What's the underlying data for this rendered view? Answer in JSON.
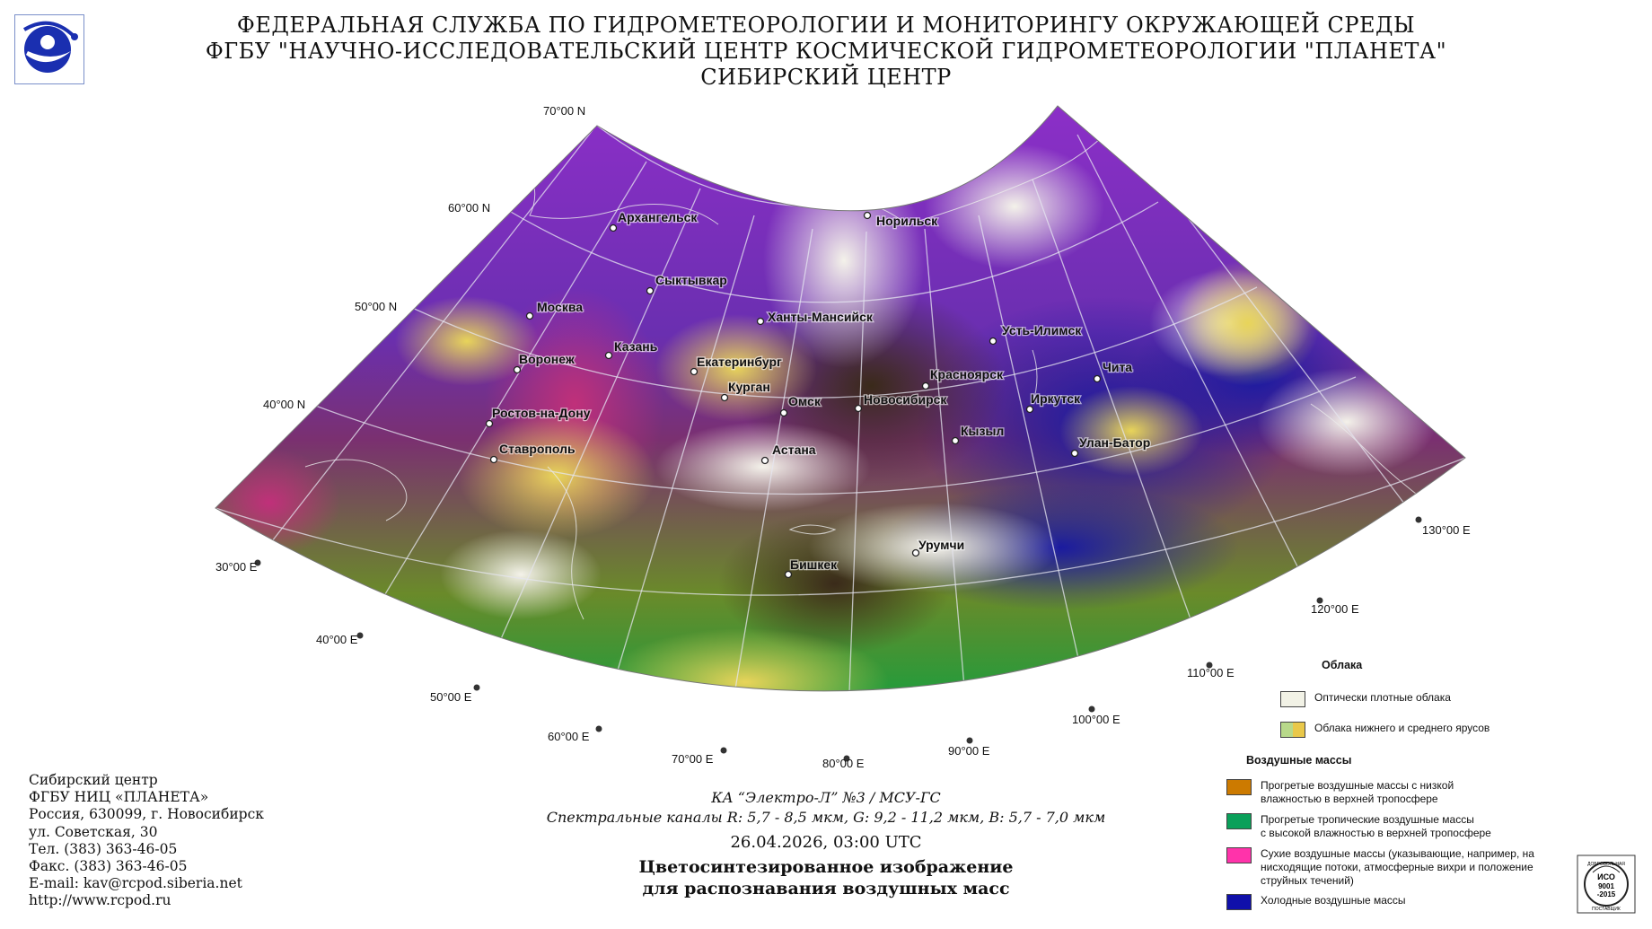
{
  "header": {
    "line1": "ФЕДЕРАЛЬНАЯ СЛУЖБА ПО ГИДРОМЕТЕОРОЛОГИИ И МОНИТОРИНГУ ОКРУЖАЮЩЕЙ СРЕДЫ",
    "line2": "ФГБУ \"НАУЧНО-ИССЛЕДОВАТЕЛЬСКИЙ ЦЕНТР КОСМИЧЕСКОЙ ГИДРОМЕТЕОРОЛОГИИ \"ПЛАНЕТА\"",
    "line3": "СИБИРСКИЙ ЦЕНТР"
  },
  "map": {
    "lat_labels": [
      "70°00 N",
      "60°00 N",
      "50°00 N",
      "40°00 N"
    ],
    "lon_labels": [
      "30°00 E",
      "40°00 E",
      "50°00 E",
      "60°00 E",
      "70°00 E",
      "80°00 E",
      "90°00 E",
      "100°00 E",
      "110°00 E",
      "120°00 E",
      "130°00 E"
    ],
    "cities": [
      "Архангельск",
      "Норильск",
      "Сыктывкар",
      "Москва",
      "Ханты-Мансийск",
      "Усть-Илимск",
      "Казань",
      "Воронеж",
      "Екатеринбург",
      "Красноярск",
      "Чита",
      "Курган",
      "Иркутск",
      "Омск",
      "Новосибирск",
      "Ростов-на-Дону",
      "Кызыл",
      "Улан-Батор",
      "Астана",
      "Ставрополь",
      "Урумчи",
      "Бишкек"
    ]
  },
  "legend": {
    "clouds_header": "Облака",
    "clouds": [
      {
        "label": "Оптически плотные облака",
        "color": "#f2f2e6"
      },
      {
        "label": "Облака нижнего и среднего ярусов",
        "colors": [
          "#b8d98a",
          "#e9c84a"
        ]
      }
    ],
    "air_header": "Воздушные массы",
    "air": [
      {
        "label1": "Прогретые воздушные массы с низкой",
        "label2": "влажностью в верхней тропосфере",
        "label3": "",
        "color": "#cc7a00"
      },
      {
        "label1": "Прогретые тропичеcкие воздушные массы",
        "label2": "с высокой влажностью в верхней тропосфере",
        "label3": "",
        "color": "#0aa05a"
      },
      {
        "label1": "Сухие воздушные массы (указывающие, например, на",
        "label2": "нисходящие потоки, атмосферные вихри и положение",
        "label3": "струйных течений)",
        "color": "#ff33aa"
      },
      {
        "label1": "Холодные воздушные массы",
        "label2": "",
        "label3": "",
        "color": "#1010aa"
      }
    ]
  },
  "contact": {
    "l1": "Сибирский центр",
    "l2": "ФГБУ НИЦ «ПЛАНЕТА»",
    "l3": "Россия, 630099, г. Новосибирск",
    "l4": "ул. Советская, 30",
    "l5": "Тел. (383) 363-46-05",
    "l6": "Факс. (383) 363-46-05",
    "l7": "E-mail: kav@rcpod.siberia.net",
    "l8": "http://www.rcpod.ru"
  },
  "caption": {
    "satellite": "КА “Электро-Л” №3 / МСУ-ГС",
    "channels": "Спектральные каналы R: 5,7 - 8,5 мкм, G: 9,2 - 11,2 мкм, B: 5,7 - 7,0 мкм",
    "datetime": "26.04.2026, 03:00 UTC",
    "title1": "Цветосинтезированное изображение",
    "title2": "для распознавания воздушных масс"
  },
  "iso": {
    "t1": "ДОБРОВОЛЬНАЯ",
    "t2": "ИСО",
    "t3": "9001",
    "t4": "-2015",
    "t5": "ПОСТАВЩИК"
  },
  "colors": {
    "frame": "#7a8fc9",
    "logo_blue": "#1a2fb0"
  }
}
